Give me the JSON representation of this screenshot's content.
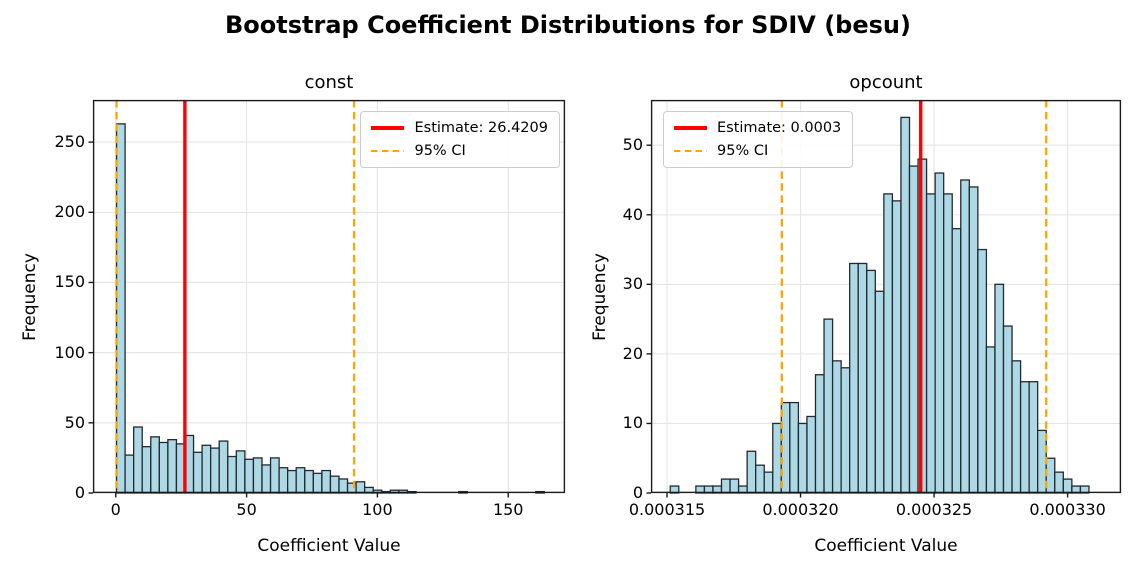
{
  "title": "Bootstrap Coefficient Distributions for SDIV (besu)",
  "colors": {
    "background": "#ffffff",
    "bar_fill": "#add8e6",
    "bar_edge": "#24292d",
    "estimate_line": "#ff0000",
    "ci_line": "#ffa500",
    "grid": "#e5e5e5",
    "axis": "#1a1a1a",
    "text": "#000000"
  },
  "chart_data": [
    {
      "type": "bar",
      "subtype": "histogram",
      "title": "const",
      "xlabel": "Coefficient Value",
      "ylabel": "Frequency",
      "legend": {
        "estimate_label": "Estimate: 26.4209",
        "ci_label": "95% CI",
        "position": "upper right"
      },
      "estimate_value": 26.4209,
      "ci": [
        0.3,
        91.1
      ],
      "bin_start": 0.3,
      "bin_width": 3.27,
      "values": [
        263,
        27,
        47,
        33,
        40,
        36,
        38,
        35,
        41,
        29,
        34,
        32,
        37,
        26,
        30,
        24,
        25,
        20,
        25,
        18,
        16,
        18,
        16,
        14,
        16,
        12,
        10,
        7,
        8,
        4,
        2,
        1,
        2,
        2,
        1,
        0,
        0,
        0,
        0,
        0,
        1,
        0,
        0,
        0,
        0,
        0,
        0,
        0,
        0,
        1
      ],
      "xlim": [
        -8.7,
        171.7
      ],
      "ylim": [
        0,
        280
      ],
      "xticks": [
        0,
        50,
        100,
        150
      ],
      "xtick_labels": [
        "0",
        "50",
        "100",
        "150"
      ],
      "yticks": [
        0,
        50,
        100,
        150,
        200,
        250
      ],
      "ytick_labels": [
        "0",
        "50",
        "100",
        "150",
        "200",
        "250"
      ],
      "grid": true
    },
    {
      "type": "bar",
      "subtype": "histogram",
      "title": "opcount",
      "xlabel": "Coefficient Value",
      "ylabel": "Frequency",
      "legend": {
        "estimate_label": "Estimate: 0.0003",
        "ci_label": "95% CI",
        "position": "upper left"
      },
      "estimate_value": 0.0003245,
      "ci": [
        0.0003193,
        0.0003292
      ],
      "bin_start": 0.00031512,
      "bin_width": 3.2e-07,
      "values": [
        1,
        0,
        0,
        1,
        1,
        1,
        2,
        2,
        1,
        6,
        4,
        3,
        10,
        13,
        13,
        10,
        11,
        17,
        25,
        19,
        18,
        33,
        33,
        32,
        29,
        43,
        42,
        54,
        47,
        48,
        43,
        46,
        43,
        38,
        45,
        44,
        35,
        21,
        30,
        24,
        19,
        16,
        16,
        9,
        5,
        3,
        2,
        1,
        1
      ],
      "xlim": [
        0.0003144,
        0.000332
      ],
      "ylim": [
        0,
        56.5
      ],
      "xticks": [
        0.000315,
        0.00032,
        0.000325,
        0.00033
      ],
      "xtick_labels": [
        "0.000315",
        "0.000320",
        "0.000325",
        "0.000330"
      ],
      "yticks": [
        0,
        10,
        20,
        30,
        40,
        50
      ],
      "ytick_labels": [
        "0",
        "10",
        "20",
        "30",
        "40",
        "50"
      ],
      "grid": true
    }
  ]
}
